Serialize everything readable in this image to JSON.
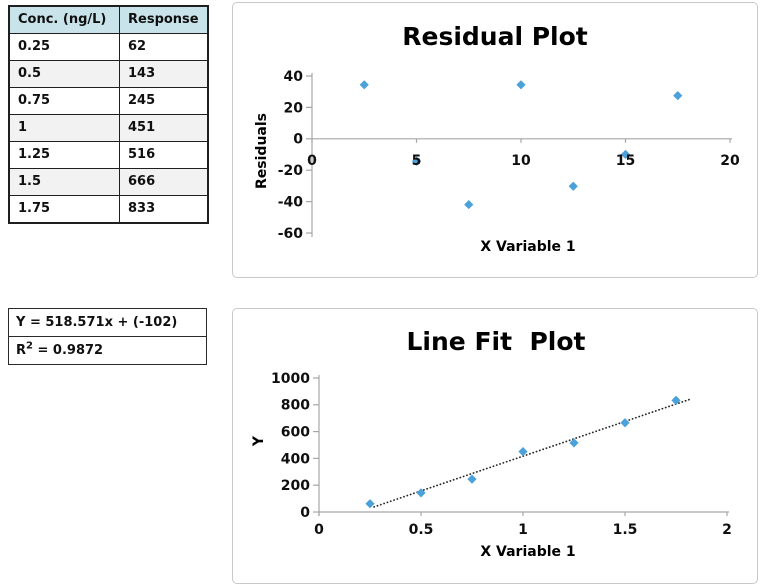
{
  "colors": {
    "marker_blue": "#4ba1d9",
    "axis_gray": "#a6a6a6",
    "chart_border": "#c9c9c9",
    "table_header_bg": "#c8e3ea",
    "text_black": "#0f0f0f"
  },
  "table": {
    "headers": [
      "Conc. (ng/L)",
      "Response"
    ],
    "rows": [
      [
        "0.25",
        "62"
      ],
      [
        "0.5",
        "143"
      ],
      [
        "0.75",
        "245"
      ],
      [
        "1",
        "451"
      ],
      [
        "1.25",
        "516"
      ],
      [
        "1.5",
        "666"
      ],
      [
        "1.75",
        "833"
      ]
    ]
  },
  "equation_box": {
    "line1": "Y = 518.571x + (-102)",
    "r2_base": "R",
    "r2_sup": "2",
    "r2_value": " = 0.9872"
  },
  "chart_data": [
    {
      "type": "scatter",
      "title": "Residual Plot",
      "xlabel": "X Variable 1",
      "ylabel": "Residuals",
      "xlim": [
        0,
        20
      ],
      "ylim": [
        -60,
        40
      ],
      "xticks": [
        0,
        5,
        10,
        15,
        20
      ],
      "yticks": [
        -60,
        -40,
        -20,
        0,
        20,
        40
      ],
      "grid": false,
      "legend": "none",
      "points": [
        [
          2.5,
          34.4
        ],
        [
          5,
          -14.3
        ],
        [
          7.5,
          -41.9
        ],
        [
          10,
          34.4
        ],
        [
          12.5,
          -30.2
        ],
        [
          15,
          -9.9
        ],
        [
          17.5,
          27.5
        ]
      ]
    },
    {
      "type": "scatter",
      "title": "Line Fit  Plot",
      "xlabel": "X Variable 1",
      "ylabel": "Y",
      "xlim": [
        0,
        2
      ],
      "ylim": [
        0,
        1000
      ],
      "xticks": [
        0,
        0.5,
        1,
        1.5,
        2
      ],
      "yticks": [
        0,
        200,
        400,
        600,
        800,
        1000
      ],
      "grid": false,
      "legend": "none",
      "points": [
        [
          0.25,
          62
        ],
        [
          0.5,
          143
        ],
        [
          0.75,
          245
        ],
        [
          1,
          451
        ],
        [
          1.25,
          516
        ],
        [
          1.5,
          666
        ],
        [
          1.75,
          833
        ]
      ],
      "trendline": {
        "style": "dotted",
        "slope": 518.571,
        "intercept": -102,
        "x_range": [
          0.27,
          1.82
        ]
      }
    }
  ]
}
